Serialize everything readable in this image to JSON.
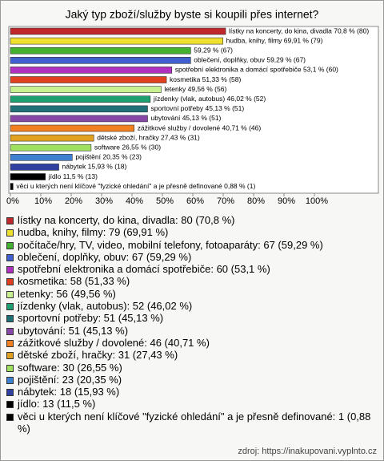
{
  "chart_data": {
    "type": "hbar",
    "title": "Jaký typ zboží/služby byste si koupili přes internet?",
    "categories": [
      "lístky na koncerty, do kina, divadla: 80 (70,8 %)",
      "hudba, knihy, filmy: 79 (69,91 %)",
      "počítače/hry, TV, video, mobilní telefony, fotoaparáty: 67 (59,29 %)",
      "oblečení, doplňky, obuv: 67 (59,29 %)",
      "spotřební elektronika a domácí spotřebiče: 60 (53,1 %)",
      "kosmetika: 58 (51,33 %)",
      "letenky: 56 (49,56 %)",
      "jízdenky (vlak, autobus): 52 (46,02 %)",
      "sportovní potřeby: 51 (45,13 %)",
      "ubytování: 51 (45,13 %)",
      "zážitkové služby / dovolené: 46 (40,71 %)",
      "dětské zboží, hračky: 31 (27,43 %)",
      "software: 30 (26,55 %)",
      "pojištění: 23 (20,35 %)",
      "nábytek: 18 (15,93 %)",
      "jídlo: 13 (11,5 %)",
      "věci u kterých není klíčové \"fyzické ohledání\" a je přesně definované: 1 (0,88 %)"
    ],
    "values": [
      70.8,
      69.91,
      59.29,
      59.29,
      53.1,
      51.33,
      49.56,
      46.02,
      45.13,
      45.13,
      40.71,
      27.43,
      26.55,
      20.35,
      15.93,
      11.5,
      0.88
    ],
    "value_labels": [
      "lístky na koncerty, do kina, divadla 70,8 % (80)",
      "hudba, knihy, filmy 69,91 % (79)",
      "59,29 % (67)",
      "oblečení, doplňky, obuv 59,29 % (67)",
      "spotřební elektronika a domácí spotřebiče 53,1 % (60)",
      "kosmetika 51,33 % (58)",
      "letenky 49,56 % (56)",
      "jízdenky (vlak, autobus) 46,02 % (52)",
      "sportovní potřeby 45,13 % (51)",
      "ubytování 45,13 % (51)",
      "zážitkové služby / dovolené 40,71 % (46)",
      "dětské zboží, hračky 27,43 % (31)",
      "software 26,55 % (30)",
      "pojištění 20,35 % (23)",
      "nábytek 15,93 % (18)",
      "jídlo 11,5 % (13)",
      "věci u kterých není klíčové \"fyzické ohledání\" a je přesně definované 0,88 % (1)"
    ],
    "colors": [
      "#c0282d",
      "#f0e030",
      "#44b030",
      "#4060d0",
      "#b030c0",
      "#e04020",
      "#c8f090",
      "#20a070",
      "#207078",
      "#8848a8",
      "#f08020",
      "#e0a020",
      "#a0e060",
      "#4080d0",
      "#3040a0",
      "#000000",
      "#000000"
    ],
    "xlim": [
      0,
      100
    ],
    "xticks": [
      {
        "value": 0,
        "label": "0%"
      },
      {
        "value": 10,
        "label": "10%"
      },
      {
        "value": 20,
        "label": "20%"
      },
      {
        "value": 30,
        "label": "30%"
      },
      {
        "value": 40,
        "label": "40%"
      },
      {
        "value": 50,
        "label": "50%"
      },
      {
        "value": 60,
        "label": "60%"
      },
      {
        "value": 70,
        "label": "70%"
      },
      {
        "value": 80,
        "label": "80%"
      },
      {
        "value": 90,
        "label": "90%"
      },
      {
        "value": 100,
        "label": "100%"
      }
    ],
    "source": "zdroj: https://inakupovani.vyplnto.cz"
  }
}
